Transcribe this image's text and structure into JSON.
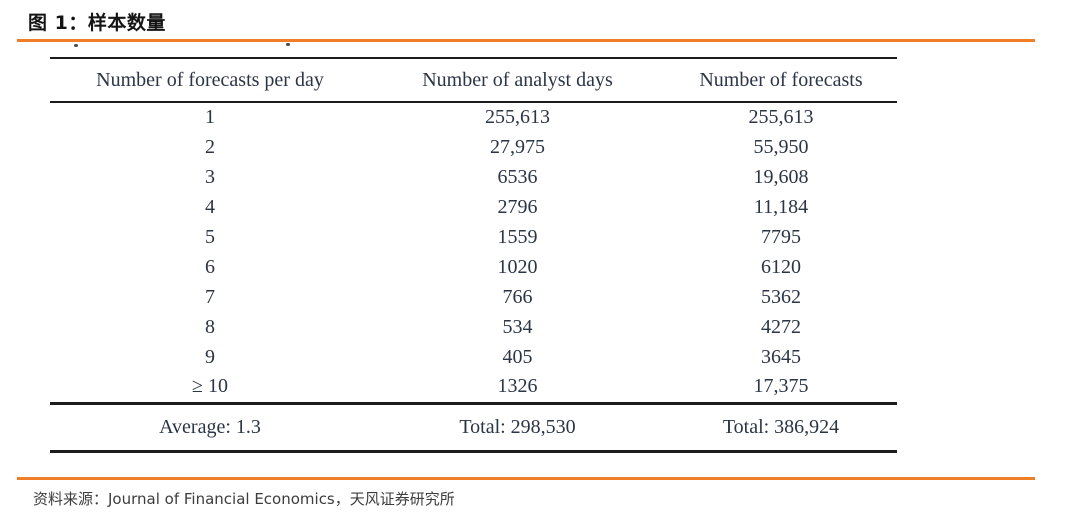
{
  "figure": {
    "title": "图 1：样本数量",
    "source": "资料来源：Journal of Financial Economics，天风证券研究所"
  },
  "table": {
    "headers": [
      "Number of forecasts per day",
      "Number of analyst days",
      "Number of forecasts"
    ],
    "rows": [
      [
        "1",
        "255,613",
        "255,613"
      ],
      [
        "2",
        "27,975",
        "55,950"
      ],
      [
        "3",
        "6536",
        "19,608"
      ],
      [
        "4",
        "2796",
        "11,184"
      ],
      [
        "5",
        "1559",
        "7795"
      ],
      [
        "6",
        "1020",
        "6120"
      ],
      [
        "7",
        "766",
        "5362"
      ],
      [
        "8",
        "534",
        "4272"
      ],
      [
        "9",
        "405",
        "3645"
      ],
      [
        "≥ 10",
        "1326",
        "17,375"
      ]
    ],
    "footer": [
      "Average: 1.3",
      "Total: 298,530",
      "Total: 386,924"
    ]
  },
  "colors": {
    "accent_orange": "#F07E28",
    "table_text": "#2B3545",
    "rule_black": "#1C1C1C",
    "title_text": "#141414",
    "source_text": "#3D3D3D"
  }
}
